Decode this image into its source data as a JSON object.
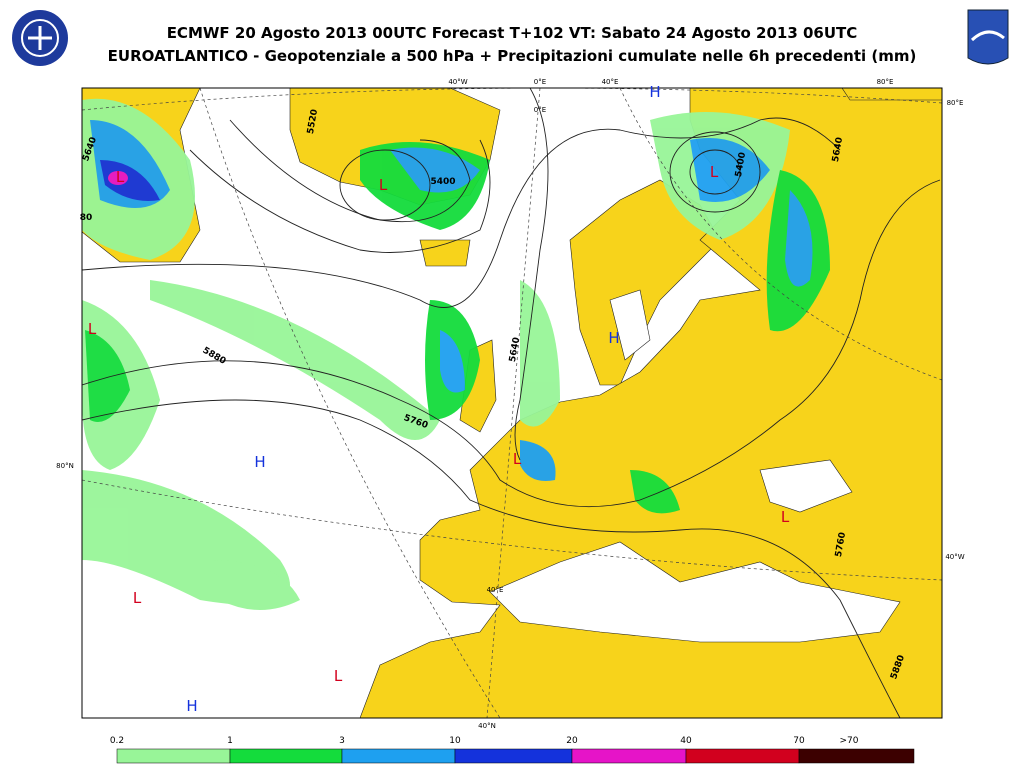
{
  "header": {
    "title": "ECMWF 20 Agosto 2013 00UTC Forecast T+102 VT: Sabato 24 Agosto 2013 06UTC",
    "subtitle": "EUROATLANTICO - Geopotenziale a 500 hPa + Precipitazioni cumulate nelle 6h precedenti (mm)"
  },
  "map": {
    "centers": [
      "H",
      "L",
      "L",
      "L",
      "L",
      "H",
      "H",
      "L",
      "L",
      "L",
      "L",
      "H"
    ],
    "contour_labels": [
      "5640",
      "5520",
      "5400",
      "5400",
      "5640",
      "5880",
      "5760",
      "5640",
      "5760",
      "5880",
      "80"
    ],
    "grid_labels": [
      "40°W",
      "0°E",
      "40°E",
      "80°E",
      "80°E",
      "80°N",
      "40°W",
      "40°E",
      "40°N",
      "0°E"
    ]
  },
  "legend": {
    "labels": [
      "0.2",
      "1",
      "3",
      "10",
      "20",
      "40",
      "70",
      ">70"
    ],
    "colors": [
      "#98f598",
      "#14dc3c",
      "#1ea0f0",
      "#1432dc",
      "#e614c8",
      "#d2001e",
      "#3c0000"
    ]
  }
}
